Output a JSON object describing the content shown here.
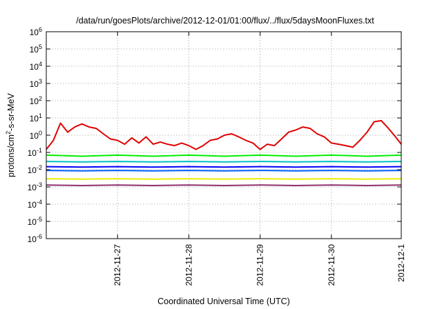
{
  "chart_data": {
    "type": "line",
    "title": "/data/run/goesPlots/archive/2012-12-01/01:00/flux/../flux/5daysMoonFluxes.txt",
    "xlabel": "Coordinated Universal Time (UTC)",
    "ylabel_base": "protons/cm",
    "ylabel_sup": "2",
    "ylabel_rest": "-s-sr-MeV",
    "yscale": "log",
    "ylim": [
      1e-06,
      1000000
    ],
    "xlim_days": [
      0,
      4.98
    ],
    "grid": true,
    "x_ticks": [
      {
        "label": "2012-11-27",
        "day": 1.0
      },
      {
        "label": "2012-11-28",
        "day": 2.0
      },
      {
        "label": "2012-11-29",
        "day": 3.0
      },
      {
        "label": "2012-11-30",
        "day": 4.0
      },
      {
        "label": "2012-12-1",
        "day": 4.98
      }
    ],
    "y_ticks": [
      {
        "base": "10",
        "exp": "6",
        "value": 1000000
      },
      {
        "base": "10",
        "exp": "5",
        "value": 100000
      },
      {
        "base": "10",
        "exp": "4",
        "value": 10000
      },
      {
        "base": "10",
        "exp": "3",
        "value": 1000
      },
      {
        "base": "10",
        "exp": "2",
        "value": 100
      },
      {
        "base": "10",
        "exp": "1",
        "value": 10
      },
      {
        "base": "10",
        "exp": "0",
        "value": 1
      },
      {
        "base": "10",
        "exp": "-1",
        "value": 0.1
      },
      {
        "base": "10",
        "exp": "-2",
        "value": 0.01
      },
      {
        "base": "10",
        "exp": "-3",
        "value": 0.001
      },
      {
        "base": "10",
        "exp": "-4",
        "value": 0.0001
      },
      {
        "base": "10",
        "exp": "-5",
        "value": 1e-05
      },
      {
        "base": "10",
        "exp": "-6",
        "value": 1e-06
      }
    ],
    "series": [
      {
        "color": "#e00000",
        "x": [
          0,
          0.1,
          0.2,
          0.3,
          0.4,
          0.5,
          0.6,
          0.7,
          0.8,
          0.9,
          1.0,
          1.1,
          1.2,
          1.3,
          1.4,
          1.5,
          1.6,
          1.7,
          1.8,
          1.9,
          2.0,
          2.1,
          2.2,
          2.3,
          2.4,
          2.5,
          2.6,
          2.7,
          2.8,
          2.9,
          3.0,
          3.1,
          3.2,
          3.3,
          3.4,
          3.5,
          3.6,
          3.7,
          3.8,
          3.9,
          4.0,
          4.1,
          4.2,
          4.3,
          4.4,
          4.5,
          4.6,
          4.7,
          4.8,
          4.9,
          4.98
        ],
        "values": [
          0.15,
          0.5,
          5,
          1.5,
          3,
          4.5,
          3,
          2.5,
          1.2,
          0.6,
          0.5,
          0.3,
          0.7,
          0.35,
          0.8,
          0.3,
          0.4,
          0.3,
          0.25,
          0.35,
          0.25,
          0.15,
          0.25,
          0.5,
          0.6,
          1,
          1.2,
          0.8,
          0.5,
          0.35,
          0.15,
          0.3,
          0.25,
          0.6,
          1.5,
          2,
          3,
          2.5,
          1.2,
          0.8,
          0.35,
          0.3,
          0.25,
          0.2,
          0.5,
          1.5,
          6,
          7,
          2.5,
          0.8,
          0.3
        ]
      },
      {
        "color": "#00ee00",
        "x": [
          0,
          0.5,
          1,
          1.5,
          2,
          2.5,
          3,
          3.5,
          4,
          4.5,
          4.98
        ],
        "values": [
          0.07,
          0.06,
          0.07,
          0.06,
          0.07,
          0.06,
          0.07,
          0.06,
          0.07,
          0.06,
          0.07
        ]
      },
      {
        "color": "#00c0c0",
        "x": [
          0,
          0.5,
          1,
          1.5,
          2,
          2.5,
          3,
          3.5,
          4,
          4.5,
          4.98
        ],
        "values": [
          0.03,
          0.028,
          0.03,
          0.028,
          0.03,
          0.028,
          0.03,
          0.028,
          0.03,
          0.028,
          0.03
        ]
      },
      {
        "color": "#0000ff",
        "x": [
          0,
          0.5,
          1,
          1.5,
          2,
          2.5,
          3,
          3.5,
          4,
          4.5,
          4.98
        ],
        "values": [
          0.015,
          0.014,
          0.015,
          0.014,
          0.015,
          0.014,
          0.015,
          0.014,
          0.015,
          0.014,
          0.015
        ]
      },
      {
        "color": "#0060ff",
        "x": [
          0,
          0.5,
          1,
          1.5,
          2,
          2.5,
          3,
          3.5,
          4,
          4.5,
          4.98
        ],
        "values": [
          0.009,
          0.0085,
          0.009,
          0.0085,
          0.009,
          0.0085,
          0.009,
          0.0085,
          0.009,
          0.0085,
          0.009
        ]
      },
      {
        "color": "#eeee00",
        "x": [
          0,
          0.5,
          1,
          1.5,
          2,
          2.5,
          3,
          3.5,
          4,
          4.5,
          4.98
        ],
        "values": [
          0.003,
          0.0028,
          0.003,
          0.0028,
          0.003,
          0.0028,
          0.003,
          0.0028,
          0.003,
          0.0028,
          0.003
        ]
      },
      {
        "color": "#903070",
        "x": [
          0,
          0.5,
          1,
          1.5,
          2,
          2.5,
          3,
          3.5,
          4,
          4.5,
          4.98
        ],
        "values": [
          0.0013,
          0.0012,
          0.0013,
          0.0012,
          0.0013,
          0.0012,
          0.0013,
          0.0012,
          0.0013,
          0.0012,
          0.0013
        ]
      }
    ]
  }
}
